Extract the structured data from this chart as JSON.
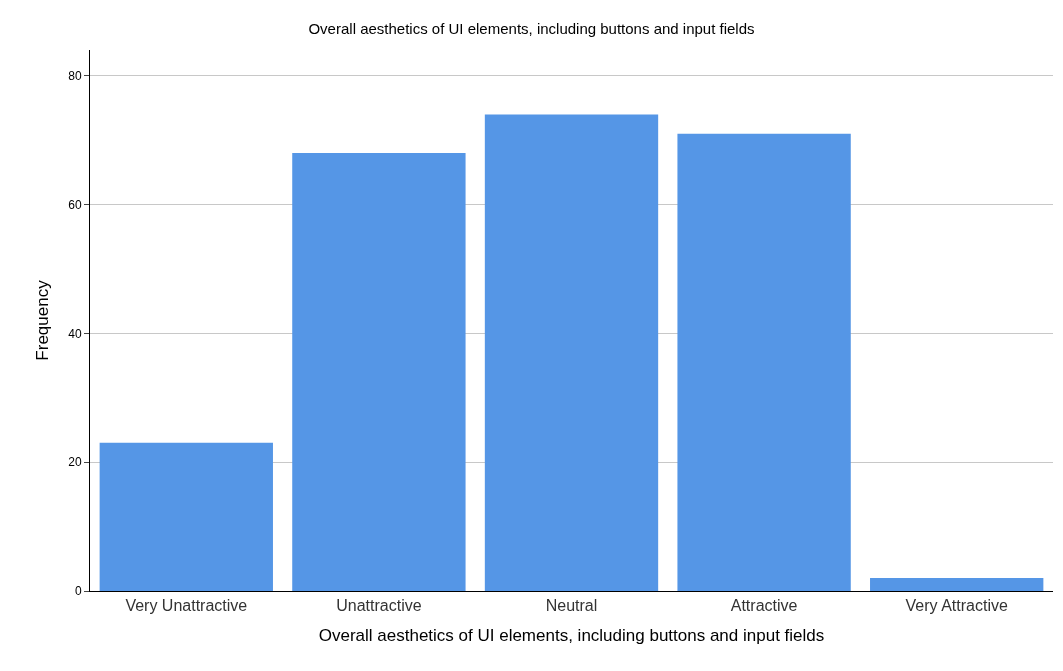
{
  "chart_data": {
    "type": "bar",
    "title": "Overall aesthetics of UI elements, including buttons and input fields",
    "xlabel": "Overall aesthetics of UI elements, including buttons and input fields",
    "ylabel": "Frequency",
    "categories": [
      "Very Unattractive",
      "Unattractive",
      "Neutral",
      "Attractive",
      "Very Attractive"
    ],
    "values": [
      23,
      68,
      74,
      71,
      2
    ],
    "color": "#5596e6",
    "ylim": [
      0,
      84
    ],
    "yticks": [
      0,
      20,
      40,
      60,
      80
    ],
    "grid": "y",
    "legend": false
  }
}
